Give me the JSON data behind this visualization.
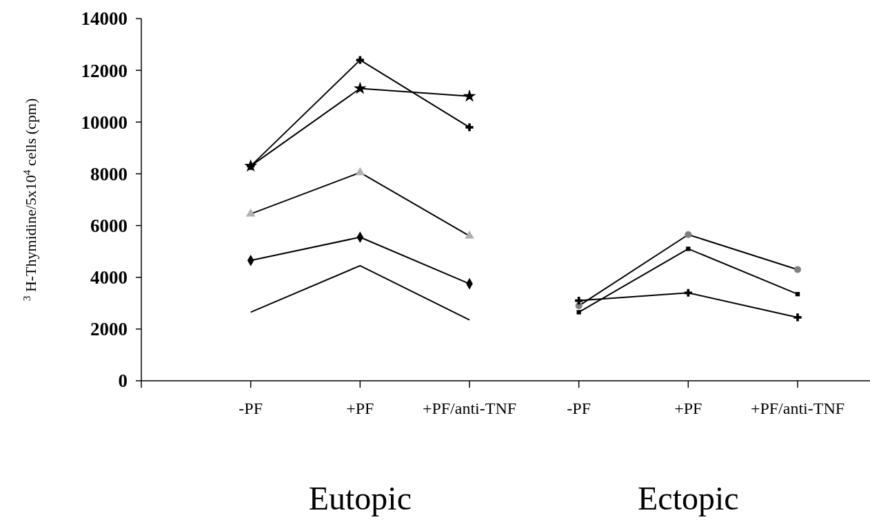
{
  "chart_data": {
    "type": "line",
    "ylabel": "$^{3}$ H-Thymidine/5x10$^{4}$ cells (cpm)",
    "categories": [
      "-PF",
      "+PF",
      "+PF/anti-TNF",
      "-PF",
      "+PF",
      "+PF/anti-TNF"
    ],
    "ylim": [
      0,
      14000
    ],
    "yticks": [
      0,
      2000,
      4000,
      6000,
      8000,
      10000,
      12000,
      14000
    ],
    "grid": false,
    "line_style": "solid",
    "annotations": [
      "Eutopic",
      "Ectopic"
    ],
    "series": [
      {
        "color": "#000000",
        "marker": "star",
        "values": [
          8300,
          11300,
          11000,
          null,
          null,
          null
        ]
      },
      {
        "color": "#000000",
        "marker": "cross",
        "values": [
          8300,
          12400,
          9800,
          null,
          null,
          null
        ]
      },
      {
        "color": "#000000",
        "marker": "triangle",
        "values": [
          6450,
          8050,
          5600,
          null,
          null,
          null
        ]
      },
      {
        "color": "#000000",
        "marker": "diamond",
        "values": [
          4650,
          5550,
          3750,
          null,
          null,
          null
        ]
      },
      {
        "color": "#000000",
        "marker": "none",
        "values": [
          2650,
          4450,
          2350,
          null,
          null,
          null
        ]
      },
      {
        "color": "#000000",
        "marker": "circle",
        "values": [
          null,
          null,
          null,
          2900,
          5650,
          4300
        ]
      },
      {
        "color": "#000000",
        "marker": "square",
        "values": [
          null,
          null,
          null,
          2650,
          5100,
          3350
        ]
      },
      {
        "color": "#000000",
        "marker": "cross",
        "values": [
          null,
          null,
          null,
          3100,
          3400,
          2450
        ]
      }
    ]
  }
}
